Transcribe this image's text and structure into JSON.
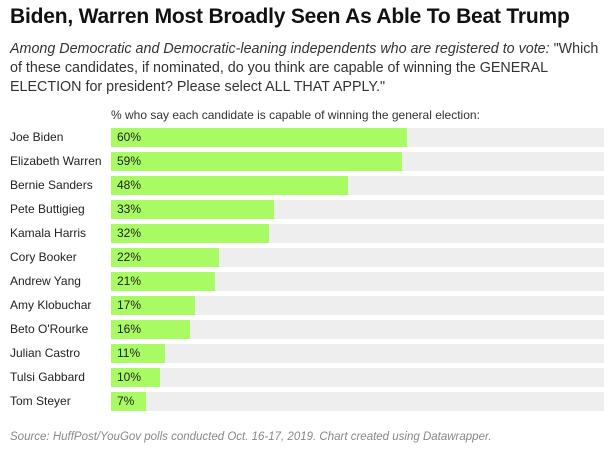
{
  "chart_data": {
    "type": "bar",
    "orientation": "horizontal",
    "title": "Biden, Warren Most Broadly Seen As Able To Beat Trump",
    "subtitle_italic": "Among Democratic and Democratic-leaning independents who are registered to vote:",
    "subtitle_rest": " \"Which of these candidates, if nominated, do you think are capable of winning the GENERAL ELECTION for president? Please select ALL THAT APPLY.\"",
    "header": "% who say each candidate is capable of winning the general election:",
    "categories": [
      "Joe Biden",
      "Elizabeth Warren",
      "Bernie Sanders",
      "Pete Buttigieg",
      "Kamala Harris",
      "Cory Booker",
      "Andrew Yang",
      "Amy Klobuchar",
      "Beto O'Rourke",
      "Julian Castro",
      "Tulsi Gabbard",
      "Tom Steyer"
    ],
    "values": [
      60,
      59,
      48,
      33,
      32,
      22,
      21,
      17,
      16,
      11,
      10,
      7
    ],
    "value_labels": [
      "60%",
      "59%",
      "48%",
      "33%",
      "32%",
      "22%",
      "21%",
      "17%",
      "16%",
      "11%",
      "10%",
      "7%"
    ],
    "xlim": [
      0,
      100
    ],
    "bar_color": "#a8fb63",
    "track_color": "#eeeeee",
    "source": "Source: HuffPost/YouGov polls conducted Oct. 16-17, 2019. Chart created using Datawrapper."
  }
}
